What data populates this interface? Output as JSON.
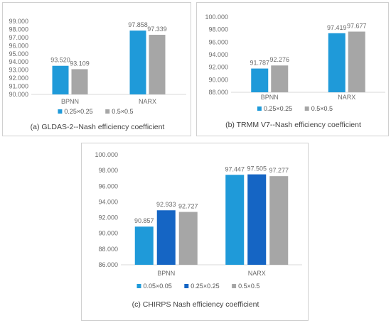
{
  "chart_data": [
    {
      "type": "bar",
      "categories": [
        "BPNN",
        "NARX"
      ],
      "series": [
        {
          "name": "0.25×0.25",
          "values": [
            93.52,
            97.858
          ],
          "labels": [
            "93.520",
            "97.858"
          ],
          "color": "#1f9ad9"
        },
        {
          "name": "0.5×0.5",
          "values": [
            93.109,
            97.339
          ],
          "labels": [
            "93.109",
            "97.339"
          ],
          "color": "#a6a6a6"
        }
      ],
      "ylim": [
        90,
        99
      ],
      "yticks": [
        90,
        91,
        92,
        93,
        94,
        95,
        96,
        97,
        98,
        99
      ],
      "ytick_labels": [
        "90.000",
        "91.000",
        "92.000",
        "93.000",
        "94.000",
        "95.000",
        "96.000",
        "97.000",
        "98.000",
        "99.000"
      ],
      "legend": "bottom",
      "caption": "(a) GLDAS-2--Nash efficiency coefficient"
    },
    {
      "type": "bar",
      "categories": [
        "BPNN",
        "NARX"
      ],
      "series": [
        {
          "name": "0.25×0.25",
          "values": [
            91.787,
            97.419
          ],
          "labels": [
            "91.787",
            "97.419"
          ],
          "color": "#1f9ad9"
        },
        {
          "name": "0.5×0.5",
          "values": [
            92.276,
            97.677
          ],
          "labels": [
            "92.276",
            "97.677"
          ],
          "color": "#a6a6a6"
        }
      ],
      "ylim": [
        88,
        100
      ],
      "yticks": [
        88,
        90,
        92,
        94,
        96,
        98,
        100
      ],
      "ytick_labels": [
        "88.000",
        "90.000",
        "92.000",
        "94.000",
        "96.000",
        "98.000",
        "100.000"
      ],
      "legend": "bottom",
      "caption": "(b) TRMM V7--Nash efficiency coefficient"
    },
    {
      "type": "bar",
      "categories": [
        "BPNN",
        "NARX"
      ],
      "series": [
        {
          "name": "0.05×0.05",
          "values": [
            90.857,
            97.447
          ],
          "labels": [
            "90.857",
            "97.447"
          ],
          "color": "#1f9ad9"
        },
        {
          "name": "0.25×0.25",
          "values": [
            92.933,
            97.505
          ],
          "labels": [
            "92.933",
            "97.505"
          ],
          "color": "#1565c4"
        },
        {
          "name": "0.5×0.5",
          "values": [
            92.727,
            97.277
          ],
          "labels": [
            "92.727",
            "97.277"
          ],
          "color": "#a6a6a6"
        }
      ],
      "ylim": [
        86,
        100
      ],
      "yticks": [
        86,
        88,
        90,
        92,
        94,
        96,
        98,
        100
      ],
      "ytick_labels": [
        "86.000",
        "88.000",
        "90.000",
        "92.000",
        "94.000",
        "96.000",
        "98.000",
        "100.000"
      ],
      "legend": "bottom",
      "caption": "(c) CHIRPS Nash efficiency coefficient"
    }
  ]
}
